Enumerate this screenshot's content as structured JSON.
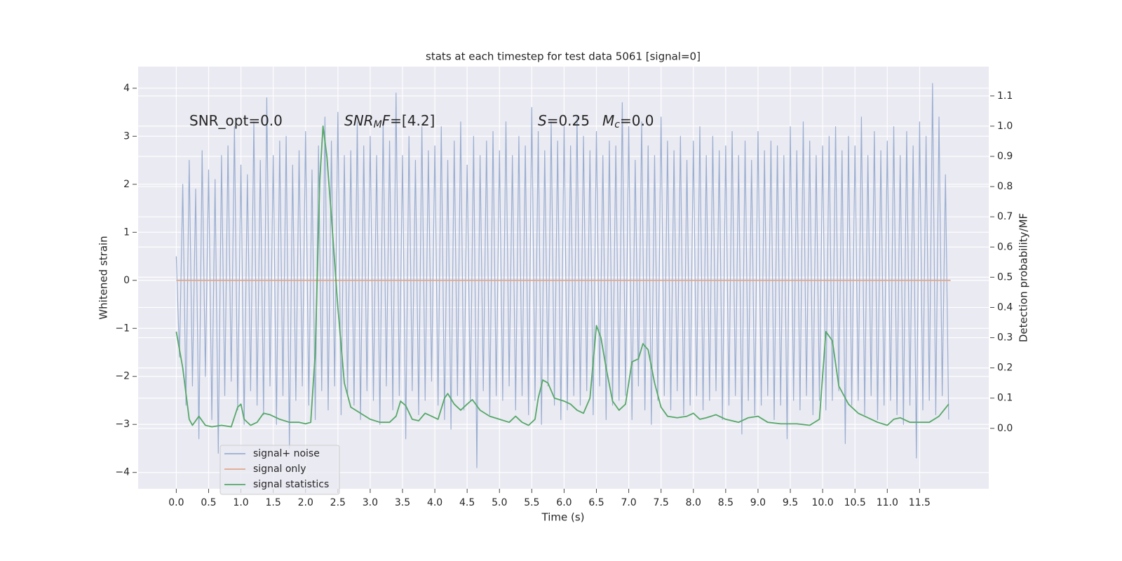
{
  "chart_data": {
    "type": "line",
    "title": "stats at each timestep for test data 5061 [signal=0]",
    "x_label": "Time (s)",
    "y_label": "Whitened strain",
    "y2_label": "Detection probability/MF",
    "xlim": [
      -0.59,
      12.57
    ],
    "ylim": [
      -4.34,
      4.45
    ],
    "y2lim": [
      -0.2,
      1.197
    ],
    "xticks": [
      {
        "value": 0,
        "label": "0.0"
      },
      0.5,
      {
        "value": 1,
        "label": "1.0"
      },
      1.5,
      {
        "value": 2,
        "label": "2.0"
      },
      2.5,
      {
        "value": 3,
        "label": "3.0"
      },
      3.5,
      {
        "value": 4,
        "label": "4.0"
      },
      4.5,
      {
        "value": 5,
        "label": "5.0"
      },
      5.5,
      {
        "value": 6,
        "label": "6.0"
      },
      6.5,
      {
        "value": 7,
        "label": "7.0"
      },
      7.5,
      {
        "value": 8,
        "label": "8.0"
      },
      8.5,
      {
        "value": 9,
        "label": "9.0"
      },
      9.5,
      {
        "value": 10,
        "label": "10.0"
      },
      10.5,
      {
        "value": 11,
        "label": "11.0"
      },
      11.5
    ],
    "yticks": [
      {
        "value": -4,
        "label": "−4"
      },
      {
        "value": -3,
        "label": "−3"
      },
      {
        "value": -2,
        "label": "−2"
      },
      {
        "value": -1,
        "label": "−1"
      },
      0,
      1,
      2,
      3,
      4
    ],
    "y2ticks": [
      {
        "value": 0,
        "label": "0.0"
      },
      0.1,
      0.2,
      0.3,
      0.4,
      0.5,
      0.6,
      0.7,
      0.8,
      0.9,
      {
        "value": 1,
        "label": "1.0"
      },
      1.1
    ],
    "grid": true,
    "annotations": [
      {
        "parts": [
          {
            "text": "SNR_opt=0.0",
            "style": "normal"
          }
        ]
      },
      {
        "parts": [
          {
            "text": "SNR",
            "style": "italic"
          },
          {
            "text": "M",
            "style": "italic-sub"
          },
          {
            "text": "F",
            "style": "italic"
          },
          {
            "text": "=[4.2]",
            "style": "normal"
          }
        ]
      },
      {
        "parts": [
          {
            "text": "S",
            "style": "italic"
          },
          {
            "text": "=0.25",
            "style": "normal"
          }
        ]
      },
      {
        "parts": [
          {
            "text": "M",
            "style": "italic"
          },
          {
            "text": "c",
            "style": "italic-sub"
          },
          {
            "text": "=0.0",
            "style": "normal"
          }
        ]
      }
    ],
    "legend": "lower left",
    "series": [
      {
        "name": "signal+ noise",
        "color": "#9aaed1",
        "axis": "y",
        "x": [
          0,
          0.05,
          0.1,
          0.15,
          0.2,
          0.25,
          0.3,
          0.35,
          0.4,
          0.45,
          0.5,
          0.55,
          0.6,
          0.65,
          0.7,
          0.75,
          0.8,
          0.85,
          0.9,
          0.95,
          1,
          1.05,
          1.1,
          1.15,
          1.2,
          1.25,
          1.3,
          1.35,
          1.4,
          1.45,
          1.5,
          1.55,
          1.6,
          1.65,
          1.7,
          1.75,
          1.8,
          1.85,
          1.9,
          1.95,
          2,
          2.05,
          2.1,
          2.15,
          2.2,
          2.25,
          2.3,
          2.35,
          2.4,
          2.45,
          2.5,
          2.55,
          2.6,
          2.65,
          2.7,
          2.75,
          2.8,
          2.85,
          2.9,
          2.95,
          3,
          3.05,
          3.1,
          3.15,
          3.2,
          3.25,
          3.3,
          3.35,
          3.4,
          3.45,
          3.5,
          3.55,
          3.6,
          3.65,
          3.7,
          3.75,
          3.8,
          3.85,
          3.9,
          3.95,
          4,
          4.05,
          4.1,
          4.15,
          4.2,
          4.25,
          4.3,
          4.35,
          4.4,
          4.45,
          4.5,
          4.55,
          4.6,
          4.65,
          4.7,
          4.75,
          4.8,
          4.85,
          4.9,
          4.95,
          5,
          5.05,
          5.1,
          5.15,
          5.2,
          5.25,
          5.3,
          5.35,
          5.4,
          5.45,
          5.5,
          5.55,
          5.6,
          5.65,
          5.7,
          5.75,
          5.8,
          5.85,
          5.9,
          5.95,
          6,
          6.05,
          6.1,
          6.15,
          6.2,
          6.25,
          6.3,
          6.35,
          6.4,
          6.45,
          6.5,
          6.55,
          6.6,
          6.65,
          6.7,
          6.75,
          6.8,
          6.85,
          6.9,
          6.95,
          7,
          7.05,
          7.1,
          7.15,
          7.2,
          7.25,
          7.3,
          7.35,
          7.4,
          7.45,
          7.5,
          7.55,
          7.6,
          7.65,
          7.7,
          7.75,
          7.8,
          7.85,
          7.9,
          7.95,
          8,
          8.05,
          8.1,
          8.15,
          8.2,
          8.25,
          8.3,
          8.35,
          8.4,
          8.45,
          8.5,
          8.55,
          8.6,
          8.65,
          8.7,
          8.75,
          8.8,
          8.85,
          8.9,
          8.95,
          9,
          9.05,
          9.1,
          9.15,
          9.2,
          9.25,
          9.3,
          9.35,
          9.4,
          9.45,
          9.5,
          9.55,
          9.6,
          9.65,
          9.7,
          9.75,
          9.8,
          9.85,
          9.9,
          9.95,
          10,
          10.05,
          10.1,
          10.15,
          10.2,
          10.25,
          10.3,
          10.35,
          10.4,
          10.45,
          10.5,
          10.55,
          10.6,
          10.65,
          10.7,
          10.75,
          10.8,
          10.85,
          10.9,
          10.95,
          11,
          11.05,
          11.1,
          11.15,
          11.2,
          11.25,
          11.3,
          11.35,
          11.4,
          11.45,
          11.5,
          11.55,
          11.6,
          11.65,
          11.7,
          11.75,
          11.8,
          11.85,
          11.9,
          11.95
        ],
        "values": [
          0.5,
          -1.6,
          2.0,
          -2.6,
          2.5,
          -2.2,
          1.9,
          -3.3,
          2.7,
          -2.0,
          2.3,
          -2.9,
          2.1,
          -3.6,
          2.6,
          -2.4,
          2.8,
          -2.1,
          3.2,
          -2.7,
          2.4,
          -3.0,
          2.2,
          -2.3,
          3.3,
          -2.6,
          2.5,
          -2.8,
          3.8,
          -2.2,
          2.6,
          -3.0,
          2.9,
          -2.4,
          3.0,
          -3.5,
          2.4,
          -2.5,
          2.7,
          -2.2,
          3.1,
          -2.6,
          2.3,
          -2.9,
          2.8,
          -2.3,
          3.4,
          -2.7,
          2.9,
          -2.2,
          3.5,
          -2.8,
          2.6,
          -2.4,
          2.7,
          -2.6,
          3.3,
          -2.9,
          2.8,
          -2.3,
          3.0,
          -2.5,
          2.6,
          -3.0,
          3.3,
          -2.2,
          2.9,
          -2.7,
          3.9,
          -2.4,
          2.6,
          -3.3,
          3.0,
          -2.3,
          2.5,
          -2.8,
          3.2,
          -2.5,
          2.7,
          -2.1,
          2.8,
          -2.6,
          3.2,
          -2.9,
          2.5,
          -3.1,
          2.9,
          -2.4,
          3.3,
          -2.7,
          2.4,
          -2.5,
          3.0,
          -3.9,
          2.6,
          -2.3,
          2.9,
          -2.8,
          3.1,
          -2.4,
          2.7,
          -2.5,
          3.3,
          -2.2,
          2.6,
          -2.7,
          3.0,
          -2.4,
          2.8,
          -2.8,
          3.6,
          -2.5,
          3.1,
          -3.0,
          2.7,
          -2.2,
          3.3,
          -2.6,
          2.9,
          -2.9,
          3.2,
          -2.7,
          2.8,
          -2.4,
          3.4,
          -2.6,
          3.0,
          -2.3,
          2.7,
          -2.8,
          3.1,
          -2.2,
          2.6,
          -2.9,
          2.9,
          -2.6,
          2.8,
          -2.5,
          3.7,
          -2.4,
          3.2,
          -2.9,
          2.5,
          -2.2,
          3.3,
          -2.7,
          2.8,
          -3.0,
          2.6,
          -2.5,
          3.4,
          -2.4,
          2.9,
          -2.7,
          2.7,
          -2.3,
          3.0,
          -2.8,
          2.5,
          -2.6,
          2.9,
          -2.4,
          3.2,
          -2.7,
          2.6,
          -2.5,
          3.0,
          -2.3,
          2.7,
          -2.9,
          2.8,
          -2.6,
          3.1,
          -2.4,
          2.6,
          -3.2,
          2.9,
          -2.5,
          2.5,
          -2.8,
          3.1,
          -2.6,
          2.7,
          -2.4,
          2.9,
          -2.9,
          2.8,
          -2.6,
          2.6,
          -3.3,
          3.2,
          -2.5,
          2.7,
          -2.7,
          3.3,
          -2.4,
          2.9,
          -2.8,
          2.6,
          -2.5,
          2.8,
          -2.7,
          3.0,
          -2.5,
          3.2,
          -2.3,
          2.7,
          -3.4,
          3.0,
          -2.6,
          2.8,
          -2.5,
          3.4,
          -2.8,
          2.6,
          -2.4,
          3.1,
          -2.9,
          2.7,
          -2.6,
          2.9,
          -2.5,
          3.2,
          -2.8,
          2.6,
          -3.0,
          3.1,
          -2.6,
          2.8,
          -3.7,
          3.3,
          -2.7,
          3.0,
          -2.5,
          4.1,
          -2.8,
          3.4,
          -2.4,
          2.2,
          -2.9
        ]
      },
      {
        "name": "signal only",
        "color": "#e0a88b",
        "axis": "y",
        "x": [
          0,
          11.98
        ],
        "values": [
          0,
          0
        ]
      },
      {
        "name": "signal statistics",
        "color": "#55a868",
        "axis": "y2",
        "x": [
          0,
          0.1,
          0.2,
          0.25,
          0.35,
          0.45,
          0.55,
          0.7,
          0.85,
          0.95,
          1,
          1.05,
          1.15,
          1.25,
          1.35,
          1.45,
          1.6,
          1.75,
          1.9,
          2,
          2.08,
          2.15,
          2.22,
          2.27,
          2.33,
          2.4,
          2.5,
          2.6,
          2.7,
          2.85,
          3,
          3.15,
          3.3,
          3.4,
          3.47,
          3.55,
          3.65,
          3.75,
          3.85,
          3.95,
          4.05,
          4.15,
          4.2,
          4.3,
          4.4,
          4.5,
          4.58,
          4.7,
          4.85,
          5,
          5.15,
          5.25,
          5.35,
          5.45,
          5.55,
          5.6,
          5.67,
          5.75,
          5.85,
          6,
          6.1,
          6.2,
          6.3,
          6.4,
          6.5,
          6.57,
          6.65,
          6.75,
          6.85,
          6.95,
          7.05,
          7.15,
          7.22,
          7.3,
          7.4,
          7.5,
          7.6,
          7.75,
          7.9,
          8,
          8.1,
          8.2,
          8.35,
          8.5,
          8.7,
          8.85,
          9,
          9.15,
          9.35,
          9.6,
          9.8,
          9.95,
          10.05,
          10.15,
          10.25,
          10.4,
          10.55,
          10.7,
          10.85,
          11,
          11.1,
          11.2,
          11.35,
          11.5,
          11.65,
          11.8,
          11.95
        ],
        "values": [
          0.32,
          0.2,
          0.03,
          0.01,
          0.04,
          0.01,
          0.005,
          0.01,
          0.005,
          0.07,
          0.08,
          0.03,
          0.01,
          0.02,
          0.05,
          0.045,
          0.03,
          0.02,
          0.02,
          0.015,
          0.02,
          0.25,
          0.82,
          1.0,
          0.9,
          0.7,
          0.4,
          0.15,
          0.07,
          0.05,
          0.03,
          0.02,
          0.02,
          0.04,
          0.09,
          0.075,
          0.03,
          0.025,
          0.05,
          0.04,
          0.03,
          0.1,
          0.115,
          0.08,
          0.06,
          0.08,
          0.095,
          0.06,
          0.04,
          0.03,
          0.02,
          0.04,
          0.02,
          0.01,
          0.03,
          0.1,
          0.16,
          0.15,
          0.1,
          0.09,
          0.08,
          0.06,
          0.05,
          0.1,
          0.34,
          0.3,
          0.2,
          0.09,
          0.06,
          0.08,
          0.22,
          0.23,
          0.28,
          0.26,
          0.15,
          0.07,
          0.04,
          0.035,
          0.04,
          0.05,
          0.03,
          0.035,
          0.045,
          0.03,
          0.02,
          0.035,
          0.04,
          0.02,
          0.015,
          0.015,
          0.01,
          0.03,
          0.32,
          0.29,
          0.14,
          0.08,
          0.05,
          0.035,
          0.02,
          0.01,
          0.03,
          0.035,
          0.02,
          0.02,
          0.02,
          0.04,
          0.08
        ]
      }
    ]
  }
}
